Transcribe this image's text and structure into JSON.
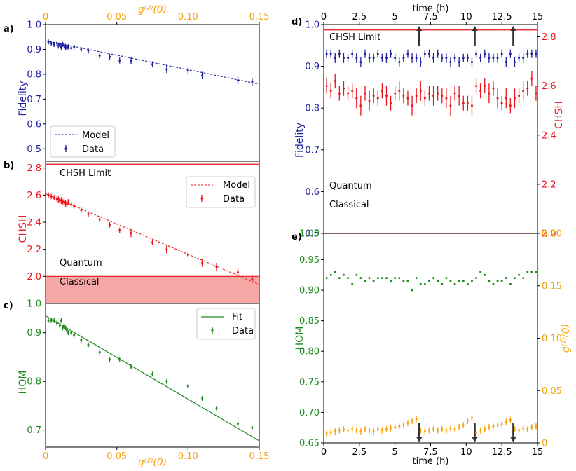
{
  "colors": {
    "navy": "#1f1f9e",
    "red": "#e8161b",
    "green": "#1d8a1d",
    "orange": "#f5a30a",
    "shade": "#f7a6a6",
    "limit": "#e8161b"
  },
  "panel_labels": {
    "a": "a)",
    "b": "b)",
    "c": "c)",
    "d": "d)",
    "e": "e)"
  },
  "chart_data": [
    {
      "id": "a",
      "type": "scatter",
      "ylabel": "Fidelity",
      "top_xlabel": "g⁽²⁾(0)",
      "xlim": [
        0,
        0.15
      ],
      "ylim": [
        0.45,
        1.0
      ],
      "xticks": [
        "0",
        "0.05",
        "0.10",
        "0.15"
      ],
      "yticks": [
        "0.5",
        "0.6",
        "0.7",
        "0.8",
        "0.9",
        "1.0"
      ],
      "legend": [
        "Model",
        "Data"
      ],
      "model": {
        "x": [
          0,
          0.15
        ],
        "y": [
          0.935,
          0.76
        ]
      },
      "x": [
        0.002,
        0.004,
        0.006,
        0.008,
        0.009,
        0.01,
        0.011,
        0.012,
        0.013,
        0.014,
        0.015,
        0.016,
        0.018,
        0.02,
        0.025,
        0.03,
        0.038,
        0.045,
        0.052,
        0.06,
        0.075,
        0.085,
        0.1,
        0.11,
        0.135,
        0.145
      ],
      "y": [
        0.93,
        0.925,
        0.92,
        0.925,
        0.915,
        0.92,
        0.91,
        0.92,
        0.915,
        0.91,
        0.905,
        0.91,
        0.905,
        0.91,
        0.9,
        0.895,
        0.875,
        0.87,
        0.855,
        0.855,
        0.84,
        0.82,
        0.815,
        0.795,
        0.775,
        0.77
      ],
      "err": [
        0.01,
        0.01,
        0.01,
        0.01,
        0.012,
        0.01,
        0.012,
        0.01,
        0.012,
        0.012,
        0.012,
        0.01,
        0.01,
        0.01,
        0.01,
        0.012,
        0.012,
        0.012,
        0.012,
        0.015,
        0.012,
        0.015,
        0.012,
        0.015,
        0.015,
        0.015
      ]
    },
    {
      "id": "b",
      "type": "scatter",
      "ylabel": "CHSH",
      "xlim": [
        0,
        0.15
      ],
      "ylim": [
        1.8,
        2.85
      ],
      "yticks": [
        "2.0",
        "2.2",
        "2.4",
        "2.6",
        "2.8"
      ],
      "bottom_tick": "1.0",
      "legend": [
        "Model",
        "Data"
      ],
      "limit_text": "CHSH Limit",
      "quantum_text": "Quantum",
      "classical_text": "Classical",
      "limit": 2.828,
      "classical": 2.0,
      "model": {
        "x": [
          0,
          0.15
        ],
        "y": [
          2.61,
          1.94
        ]
      },
      "x": [
        0.002,
        0.004,
        0.006,
        0.008,
        0.009,
        0.01,
        0.011,
        0.012,
        0.013,
        0.014,
        0.015,
        0.016,
        0.018,
        0.02,
        0.025,
        0.03,
        0.038,
        0.045,
        0.052,
        0.06,
        0.075,
        0.085,
        0.1,
        0.11,
        0.12,
        0.135,
        0.145
      ],
      "y": [
        2.6,
        2.59,
        2.58,
        2.57,
        2.57,
        2.56,
        2.56,
        2.55,
        2.55,
        2.54,
        2.53,
        2.55,
        2.53,
        2.52,
        2.49,
        2.46,
        2.42,
        2.38,
        2.34,
        2.32,
        2.25,
        2.2,
        2.16,
        2.1,
        2.07,
        2.03,
        1.98
      ],
      "err": [
        0.02,
        0.02,
        0.02,
        0.02,
        0.025,
        0.02,
        0.025,
        0.02,
        0.025,
        0.025,
        0.025,
        0.02,
        0.02,
        0.02,
        0.02,
        0.02,
        0.02,
        0.02,
        0.02,
        0.03,
        0.02,
        0.03,
        0.02,
        0.03,
        0.03,
        0.03,
        0.03
      ]
    },
    {
      "id": "c",
      "type": "scatter",
      "ylabel": "HOM",
      "xlabel": "g⁽²⁾(0)",
      "xlim": [
        0,
        0.15
      ],
      "ylim": [
        0.665,
        0.96
      ],
      "xticks": [
        "0",
        "0.05",
        "0.10",
        "0.15"
      ],
      "yticks": [
        "0.7",
        "0.8",
        "0.9"
      ],
      "top_tick": "1.0",
      "legend": [
        "Fit",
        "Data"
      ],
      "model": {
        "x": [
          0,
          0.15
        ],
        "y": [
          0.935,
          0.678
        ]
      },
      "x": [
        0.002,
        0.004,
        0.006,
        0.008,
        0.01,
        0.011,
        0.012,
        0.013,
        0.014,
        0.015,
        0.016,
        0.018,
        0.02,
        0.025,
        0.03,
        0.038,
        0.045,
        0.052,
        0.06,
        0.075,
        0.085,
        0.1,
        0.11,
        0.12,
        0.135,
        0.145
      ],
      "y": [
        0.925,
        0.925,
        0.925,
        0.92,
        0.915,
        0.925,
        0.91,
        0.915,
        0.91,
        0.905,
        0.9,
        0.9,
        0.895,
        0.885,
        0.875,
        0.86,
        0.845,
        0.845,
        0.83,
        0.815,
        0.8,
        0.79,
        0.765,
        0.745,
        0.713,
        0.705
      ],
      "err": [
        0.005,
        0.005,
        0.005,
        0.005,
        0.005,
        0.005,
        0.005,
        0.005,
        0.005,
        0.005,
        0.005,
        0.005,
        0.005,
        0.005,
        0.005,
        0.005,
        0.005,
        0.005,
        0.005,
        0.005,
        0.005,
        0.005,
        0.005,
        0.005,
        0.005,
        0.005
      ]
    },
    {
      "id": "d",
      "type": "scatter",
      "xlabel_top": "time (h)",
      "ylabel_left": "Fidelity",
      "ylabel_right": "CHSH",
      "xlim": [
        0,
        15
      ],
      "ylim_left": [
        0.5,
        1.0
      ],
      "ylim_right": [
        2.0,
        2.85
      ],
      "xticks": [
        "0",
        "2.5",
        "5",
        "7.5",
        "10",
        "12.5",
        "15"
      ],
      "yticks_left": [
        "0.5",
        "0.6",
        "0.7",
        "0.8",
        "0.9",
        "1.0"
      ],
      "yticks_right": [
        "2.0",
        "2.2",
        "2.4",
        "2.6",
        "2.8"
      ],
      "limit_text": "CHSH Limit",
      "quantum_text": "Quantum",
      "classical_text": "Classical",
      "arrows": [
        6.7,
        10.6,
        13.3
      ],
      "fidelity": {
        "x": [
          0.2,
          0.5,
          0.8,
          1.1,
          1.4,
          1.7,
          2.0,
          2.3,
          2.6,
          2.9,
          3.2,
          3.5,
          3.8,
          4.1,
          4.4,
          4.7,
          5.0,
          5.3,
          5.6,
          5.9,
          6.2,
          6.5,
          6.8,
          7.1,
          7.4,
          7.7,
          8.0,
          8.3,
          8.6,
          8.9,
          9.2,
          9.5,
          9.8,
          10.1,
          10.4,
          10.7,
          11.0,
          11.3,
          11.6,
          11.9,
          12.2,
          12.5,
          12.8,
          13.1,
          13.4,
          13.7,
          14.0,
          14.3,
          14.6,
          14.9
        ],
        "y": [
          0.93,
          0.93,
          0.92,
          0.93,
          0.92,
          0.92,
          0.93,
          0.92,
          0.91,
          0.93,
          0.92,
          0.92,
          0.93,
          0.92,
          0.92,
          0.93,
          0.92,
          0.91,
          0.92,
          0.93,
          0.92,
          0.92,
          0.91,
          0.93,
          0.93,
          0.92,
          0.93,
          0.92,
          0.92,
          0.91,
          0.92,
          0.91,
          0.92,
          0.92,
          0.91,
          0.93,
          0.92,
          0.93,
          0.92,
          0.92,
          0.92,
          0.93,
          0.91,
          0.93,
          0.91,
          0.92,
          0.92,
          0.93,
          0.93,
          0.93
        ],
        "err": [
          0.01,
          0.01,
          0.012,
          0.01,
          0.012,
          0.01,
          0.01,
          0.012,
          0.012,
          0.01,
          0.012,
          0.01,
          0.01,
          0.01,
          0.012,
          0.01,
          0.01,
          0.012,
          0.01,
          0.01,
          0.012,
          0.01,
          0.012,
          0.01,
          0.01,
          0.012,
          0.01,
          0.01,
          0.012,
          0.012,
          0.01,
          0.012,
          0.01,
          0.01,
          0.012,
          0.01,
          0.01,
          0.01,
          0.012,
          0.01,
          0.012,
          0.01,
          0.012,
          0.01,
          0.012,
          0.01,
          0.012,
          0.01,
          0.01,
          0.01
        ]
      },
      "chsh": {
        "x": [
          0.2,
          0.5,
          0.8,
          1.1,
          1.4,
          1.7,
          2.0,
          2.3,
          2.6,
          2.9,
          3.2,
          3.5,
          3.8,
          4.1,
          4.4,
          4.7,
          5.0,
          5.3,
          5.6,
          5.9,
          6.2,
          6.5,
          6.8,
          7.1,
          7.4,
          7.7,
          8.0,
          8.3,
          8.6,
          8.9,
          9.2,
          9.5,
          9.8,
          10.1,
          10.4,
          10.7,
          11.0,
          11.3,
          11.6,
          11.9,
          12.2,
          12.5,
          12.8,
          13.1,
          13.4,
          13.7,
          14.0,
          14.3,
          14.6,
          14.9
        ],
        "y": [
          2.6,
          2.58,
          2.62,
          2.57,
          2.59,
          2.57,
          2.58,
          2.55,
          2.52,
          2.57,
          2.54,
          2.56,
          2.55,
          2.58,
          2.56,
          2.53,
          2.57,
          2.58,
          2.56,
          2.55,
          2.52,
          2.56,
          2.58,
          2.55,
          2.57,
          2.56,
          2.57,
          2.56,
          2.55,
          2.52,
          2.57,
          2.56,
          2.53,
          2.53,
          2.52,
          2.6,
          2.58,
          2.6,
          2.57,
          2.59,
          2.55,
          2.53,
          2.55,
          2.52,
          2.55,
          2.56,
          2.58,
          2.59,
          2.63,
          2.57
        ],
        "err": [
          0.03,
          0.03,
          0.03,
          0.03,
          0.03,
          0.03,
          0.03,
          0.04,
          0.04,
          0.03,
          0.04,
          0.03,
          0.03,
          0.03,
          0.04,
          0.03,
          0.03,
          0.04,
          0.03,
          0.03,
          0.04,
          0.03,
          0.04,
          0.03,
          0.03,
          0.04,
          0.03,
          0.03,
          0.04,
          0.04,
          0.03,
          0.04,
          0.03,
          0.03,
          0.04,
          0.03,
          0.03,
          0.03,
          0.04,
          0.03,
          0.04,
          0.03,
          0.04,
          0.03,
          0.04,
          0.03,
          0.04,
          0.03,
          0.03,
          0.03
        ]
      }
    },
    {
      "id": "e",
      "type": "scatter",
      "xlabel": "time (h)",
      "ylabel_left": "HOM",
      "ylabel_right": "g⁽²⁾(0)",
      "xlim": [
        0,
        15
      ],
      "ylim_left": [
        0.65,
        0.97
      ],
      "ylim_right": [
        0,
        0.2
      ],
      "xticks": [
        "0",
        "2.5",
        "5",
        "7.5",
        "10",
        "12.5",
        "15"
      ],
      "yticks_left": [
        "0.65",
        "0.70",
        "0.75",
        "0.80",
        "0.85",
        "0.90",
        "0.95"
      ],
      "top_tick_left": "1.00",
      "yticks_right": [
        "0",
        "0.05",
        "0.10",
        "0.15",
        "0.20"
      ],
      "arrows": [
        6.7,
        10.6,
        13.3
      ],
      "hom": {
        "x": [
          0.2,
          0.5,
          0.8,
          1.1,
          1.4,
          1.7,
          2.0,
          2.3,
          2.6,
          2.9,
          3.2,
          3.5,
          3.8,
          4.1,
          4.4,
          4.7,
          5.0,
          5.3,
          5.6,
          5.9,
          6.2,
          6.5,
          6.8,
          7.1,
          7.4,
          7.7,
          8.0,
          8.3,
          8.6,
          8.9,
          9.2,
          9.5,
          9.8,
          10.1,
          10.4,
          10.7,
          11.0,
          11.3,
          11.6,
          11.9,
          12.2,
          12.5,
          12.8,
          13.1,
          13.4,
          13.7,
          14.0,
          14.3,
          14.6,
          14.9
        ],
        "y": [
          0.92,
          0.925,
          0.93,
          0.92,
          0.925,
          0.92,
          0.91,
          0.925,
          0.92,
          0.915,
          0.92,
          0.915,
          0.92,
          0.92,
          0.92,
          0.915,
          0.92,
          0.92,
          0.915,
          0.915,
          0.9,
          0.92,
          0.91,
          0.91,
          0.915,
          0.92,
          0.915,
          0.91,
          0.92,
          0.915,
          0.91,
          0.915,
          0.915,
          0.91,
          0.915,
          0.92,
          0.93,
          0.925,
          0.915,
          0.91,
          0.915,
          0.915,
          0.92,
          0.91,
          0.92,
          0.925,
          0.92,
          0.93,
          0.93,
          0.93
        ]
      },
      "g2": {
        "x": [
          0.2,
          0.5,
          0.8,
          1.1,
          1.4,
          1.7,
          2.0,
          2.3,
          2.6,
          2.9,
          3.2,
          3.5,
          3.8,
          4.1,
          4.4,
          4.7,
          5.0,
          5.3,
          5.6,
          5.9,
          6.2,
          6.5,
          6.8,
          7.1,
          7.4,
          7.7,
          8.0,
          8.3,
          8.6,
          8.9,
          9.2,
          9.5,
          9.8,
          10.1,
          10.4,
          10.7,
          11.0,
          11.3,
          11.6,
          11.9,
          12.2,
          12.5,
          12.8,
          13.1,
          13.4,
          13.7,
          14.0,
          14.3,
          14.6,
          14.9
        ],
        "y": [
          0.009,
          0.01,
          0.011,
          0.012,
          0.013,
          0.012,
          0.014,
          0.012,
          0.011,
          0.013,
          0.012,
          0.011,
          0.013,
          0.012,
          0.013,
          0.014,
          0.015,
          0.016,
          0.017,
          0.019,
          0.021,
          0.023,
          0.012,
          0.011,
          0.012,
          0.013,
          0.012,
          0.013,
          0.012,
          0.014,
          0.013,
          0.015,
          0.017,
          0.021,
          0.024,
          0.01,
          0.012,
          0.013,
          0.015,
          0.016,
          0.017,
          0.018,
          0.02,
          0.022,
          0.013,
          0.012,
          0.014,
          0.013,
          0.015,
          0.016
        ]
      }
    }
  ]
}
